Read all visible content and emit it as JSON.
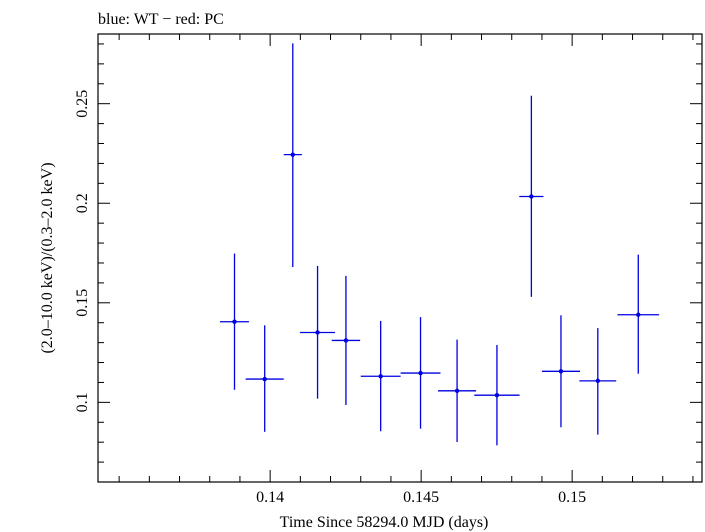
{
  "chart_data": {
    "type": "scatter",
    "title": "blue: WT − red: PC",
    "xlabel": "Time Since 58294.0 MJD (days)",
    "ylabel": "(2.0–10.0 keV)/(0.3–2.0 keV)",
    "xlim": [
      0.1343,
      0.1543
    ],
    "ylim": [
      0.06,
      0.285
    ],
    "xticks": [
      {
        "value": 0.14,
        "label": "0.14"
      },
      {
        "value": 0.145,
        "label": "0.145"
      },
      {
        "value": 0.15,
        "label": "0.15"
      }
    ],
    "yticks": [
      {
        "value": 0.1,
        "label": "0.1"
      },
      {
        "value": 0.15,
        "label": "0.15"
      },
      {
        "value": 0.2,
        "label": "0.2"
      },
      {
        "value": 0.25,
        "label": "0.25"
      }
    ],
    "grid": false,
    "series": [
      {
        "name": "WT",
        "color": "#0000e0",
        "points": [
          {
            "x": 0.13882,
            "xerr": 0.00048,
            "y": 0.1405,
            "yerr_low": 0.0342,
            "yerr_high": 0.0342
          },
          {
            "x": 0.13982,
            "xerr": 0.00063,
            "y": 0.1117,
            "yerr_low": 0.0265,
            "yerr_high": 0.027
          },
          {
            "x": 0.14075,
            "xerr": 0.0003,
            "y": 0.2244,
            "yerr_low": 0.0564,
            "yerr_high": 0.0559
          },
          {
            "x": 0.14157,
            "xerr": 0.00058,
            "y": 0.1351,
            "yerr_low": 0.0332,
            "yerr_high": 0.0334
          },
          {
            "x": 0.14251,
            "xerr": 0.00047,
            "y": 0.1311,
            "yerr_low": 0.0324,
            "yerr_high": 0.0324
          },
          {
            "x": 0.14366,
            "xerr": 0.00066,
            "y": 0.1131,
            "yerr_low": 0.0276,
            "yerr_high": 0.0278
          },
          {
            "x": 0.14498,
            "xerr": 0.00066,
            "y": 0.1147,
            "yerr_low": 0.0279,
            "yerr_high": 0.0281
          },
          {
            "x": 0.14619,
            "xerr": 0.00063,
            "y": 0.1058,
            "yerr_low": 0.0257,
            "yerr_high": 0.0257
          },
          {
            "x": 0.14751,
            "xerr": 0.00075,
            "y": 0.1036,
            "yerr_low": 0.0252,
            "yerr_high": 0.0252
          },
          {
            "x": 0.14865,
            "xerr": 0.0004,
            "y": 0.2034,
            "yerr_low": 0.0504,
            "yerr_high": 0.0506
          },
          {
            "x": 0.14963,
            "xerr": 0.00063,
            "y": 0.1156,
            "yerr_low": 0.0281,
            "yerr_high": 0.0281
          },
          {
            "x": 0.15085,
            "xerr": 0.00061,
            "y": 0.1108,
            "yerr_low": 0.027,
            "yerr_high": 0.0265
          },
          {
            "x": 0.15219,
            "xerr": 0.00069,
            "y": 0.144,
            "yerr_low": 0.0296,
            "yerr_high": 0.0302
          }
        ]
      }
    ]
  }
}
